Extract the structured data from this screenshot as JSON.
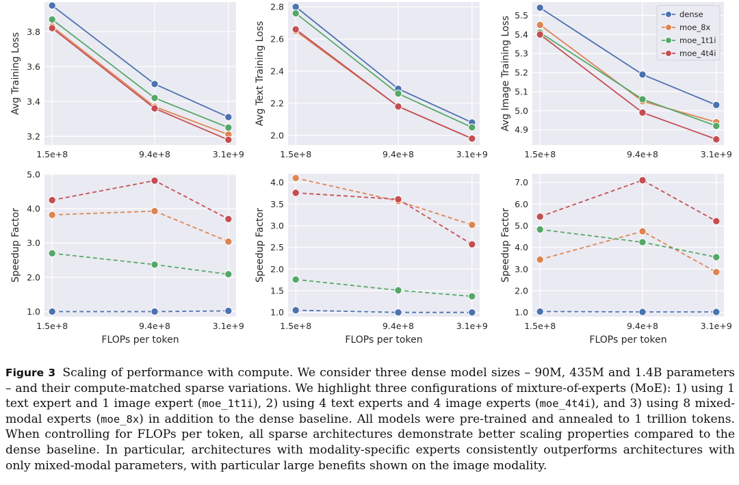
{
  "chart_data": [
    {
      "type": "line",
      "ylabel": "Avg Training Loss",
      "xlabel": "",
      "xticks": [
        "1.5e+8",
        "9.4e+8",
        "3.1e+9"
      ],
      "x": [
        150000000,
        940000000,
        3100000000
      ],
      "ylim": [
        3.15,
        3.97
      ],
      "yticks": [
        3.2,
        3.4,
        3.6,
        3.8
      ],
      "ytick_labels": [
        "3.2",
        "3.4",
        "3.6",
        "3.8"
      ],
      "dashed": false,
      "legend": false,
      "series": [
        {
          "name": "dense",
          "values": [
            3.95,
            3.5,
            3.31
          ]
        },
        {
          "name": "moe_8x",
          "values": [
            3.83,
            3.37,
            3.21
          ]
        },
        {
          "name": "moe_1t1i",
          "values": [
            3.87,
            3.42,
            3.25
          ]
        },
        {
          "name": "moe_4t4i",
          "values": [
            3.82,
            3.36,
            3.18
          ]
        }
      ]
    },
    {
      "type": "line",
      "ylabel": "Avg Text Training Loss",
      "xlabel": "",
      "xticks": [
        "1.5e+8",
        "9.4e+8",
        "3.1e+9"
      ],
      "x": [
        150000000,
        940000000,
        3100000000
      ],
      "ylim": [
        1.94,
        2.83
      ],
      "yticks": [
        2.0,
        2.2,
        2.4,
        2.6,
        2.8
      ],
      "ytick_labels": [
        "2.0",
        "2.2",
        "2.4",
        "2.6",
        "2.8"
      ],
      "dashed": false,
      "legend": false,
      "series": [
        {
          "name": "dense",
          "values": [
            2.8,
            2.29,
            2.08
          ]
        },
        {
          "name": "moe_8x",
          "values": [
            2.65,
            2.18,
            1.98
          ]
        },
        {
          "name": "moe_1t1i",
          "values": [
            2.76,
            2.26,
            2.05
          ]
        },
        {
          "name": "moe_4t4i",
          "values": [
            2.66,
            2.18,
            1.98
          ]
        }
      ]
    },
    {
      "type": "line",
      "ylabel": "Avg Image Training Loss",
      "xlabel": "",
      "xticks": [
        "1.5e+8",
        "9.4e+8",
        "3.1e+9"
      ],
      "x": [
        150000000,
        940000000,
        3100000000
      ],
      "ylim": [
        4.82,
        5.57
      ],
      "yticks": [
        4.9,
        5.0,
        5.1,
        5.2,
        5.3,
        5.4,
        5.5
      ],
      "ytick_labels": [
        "4.9",
        "5.0",
        "5.1",
        "5.2",
        "5.3",
        "5.4",
        "5.5"
      ],
      "dashed": false,
      "legend": true,
      "series": [
        {
          "name": "dense",
          "values": [
            5.54,
            5.19,
            5.03
          ]
        },
        {
          "name": "moe_8x",
          "values": [
            5.45,
            5.05,
            4.94
          ]
        },
        {
          "name": "moe_1t1i",
          "values": [
            5.41,
            5.06,
            4.92
          ]
        },
        {
          "name": "moe_4t4i",
          "values": [
            5.4,
            4.99,
            4.85
          ]
        }
      ]
    },
    {
      "type": "line",
      "ylabel": "Speedup Factor",
      "xlabel": "FLOPs per token",
      "xticks": [
        "1.5e+8",
        "9.4e+8",
        "3.1e+9"
      ],
      "x": [
        150000000,
        940000000,
        3100000000
      ],
      "ylim": [
        0.85,
        5.02
      ],
      "yticks": [
        1.0,
        2.0,
        3.0,
        4.0,
        5.0
      ],
      "ytick_labels": [
        "1.0",
        "2.0",
        "3.0",
        "4.0",
        "5.0"
      ],
      "dashed": true,
      "legend": false,
      "series": [
        {
          "name": "dense",
          "values": [
            1.0,
            1.0,
            1.02
          ]
        },
        {
          "name": "moe_8x",
          "values": [
            3.82,
            3.93,
            3.04
          ]
        },
        {
          "name": "moe_1t1i",
          "values": [
            2.7,
            2.37,
            2.09
          ]
        },
        {
          "name": "moe_4t4i",
          "values": [
            4.25,
            4.82,
            3.7
          ]
        }
      ]
    },
    {
      "type": "line",
      "ylabel": "Speedup Factor",
      "xlabel": "FLOPs per token",
      "xticks": [
        "1.5e+8",
        "9.4e+8",
        "3.1e+9"
      ],
      "x": [
        150000000,
        940000000,
        3100000000
      ],
      "ylim": [
        0.9,
        4.2
      ],
      "yticks": [
        1.0,
        1.5,
        2.0,
        2.5,
        3.0,
        3.5,
        4.0
      ],
      "ytick_labels": [
        "1.0",
        "1.5",
        "2.0",
        "2.5",
        "3.0",
        "3.5",
        "4.0"
      ],
      "dashed": true,
      "legend": false,
      "series": [
        {
          "name": "dense",
          "values": [
            1.05,
            1.0,
            1.0
          ]
        },
        {
          "name": "moe_8x",
          "values": [
            4.1,
            3.57,
            3.02
          ]
        },
        {
          "name": "moe_1t1i",
          "values": [
            1.76,
            1.51,
            1.37
          ]
        },
        {
          "name": "moe_4t4i",
          "values": [
            3.76,
            3.61,
            2.57
          ]
        }
      ]
    },
    {
      "type": "line",
      "ylabel": "Speedup Factor",
      "xlabel": "FLOPs per token",
      "xticks": [
        "1.5e+8",
        "9.4e+8",
        "3.1e+9"
      ],
      "x": [
        150000000,
        940000000,
        3100000000
      ],
      "ylim": [
        0.8,
        7.4
      ],
      "yticks": [
        1.0,
        2.0,
        3.0,
        4.0,
        5.0,
        6.0,
        7.0
      ],
      "ytick_labels": [
        "1.0",
        "2.0",
        "3.0",
        "4.0",
        "5.0",
        "6.0",
        "7.0"
      ],
      "dashed": true,
      "legend": false,
      "series": [
        {
          "name": "dense",
          "values": [
            1.04,
            1.02,
            1.02
          ]
        },
        {
          "name": "moe_8x",
          "values": [
            3.44,
            4.74,
            2.86
          ]
        },
        {
          "name": "moe_1t1i",
          "values": [
            4.83,
            4.24,
            3.55
          ]
        },
        {
          "name": "moe_4t4i",
          "values": [
            5.42,
            7.1,
            5.21
          ]
        }
      ]
    }
  ],
  "series_colors": {
    "dense": "#4c72b0",
    "moe_8x": "#dd8452",
    "moe_1t1i": "#55a868",
    "moe_4t4i": "#c44e52"
  },
  "legend_entries": [
    "dense",
    "moe_8x",
    "moe_1t1i",
    "moe_4t4i"
  ],
  "caption": {
    "label": "Figure 3",
    "text1": "Scaling of performance with compute. We consider three dense model sizes – 90M, 435M and 1.4B parameters – and their compute-matched sparse variations. We highlight three configurations of mixture-of-experts (MoE): 1) using 1 text expert and 1 image expert (",
    "code1": "moe_1t1i",
    "text2": "), 2) using 4 text experts and 4 image experts (",
    "code2": "moe_4t4i",
    "text3": "), and 3) using 8 mixed-modal experts (",
    "code3": "moe_8x",
    "text4": ") in addition to the dense baseline. All models were pre-trained and annealed to 1 trillion tokens. When controlling for FLOPs per token, all sparse architectures demonstrate better scaling properties compared to the dense baseline. In particular, architectures with modality-specific experts consistently outperforms architectures with only mixed-modal parameters, with particular large benefits shown on the image modality."
  }
}
